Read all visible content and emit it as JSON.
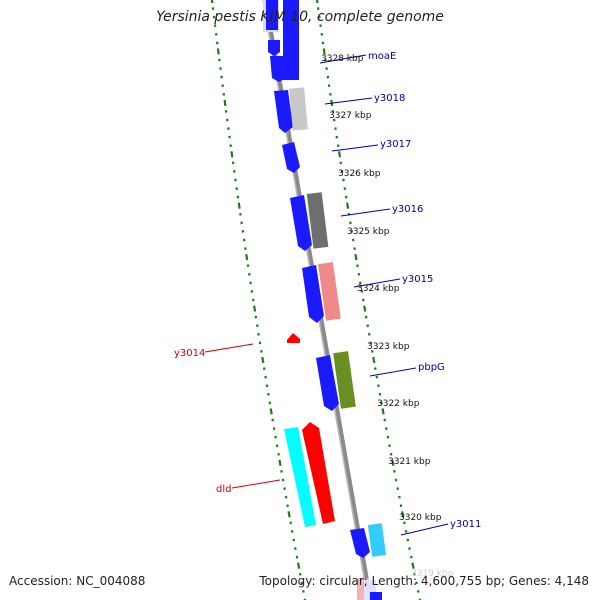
{
  "title": "Yersinia pestis KIM 10, complete genome",
  "footer": {
    "accession_label": "Accession: NC_004088",
    "summary": "Topology: circular; Length: 4,600,755 bp; Genes: 4,148"
  },
  "colors": {
    "backbone": "#8a8a8a",
    "tick_dots": "#1f7a1f",
    "label_blue": "#0000aa",
    "label_red": "#cc0000",
    "blue_feature": "#1a1aff",
    "red_feature": "#ff0000",
    "cyan_feature": "#00ffff",
    "light_cyan_feature": "#33ccff",
    "gray_feature": "#c8c8c8",
    "dark_gray_feature": "#6e6e6e",
    "pink_feature": "#f08a8a",
    "olive_feature": "#6b8e23",
    "pale_pink_feature": "#f4b4b4"
  },
  "kbp_labels": [
    "3328 kbp",
    "3327 kbp",
    "3326 kbp",
    "3325 kbp",
    "3324 kbp",
    "3323 kbp",
    "3322 kbp",
    "3321 kbp",
    "3320 kbp",
    "3319 kbp"
  ],
  "gene_labels": [
    {
      "name": "moaE",
      "color": "#0000aa"
    },
    {
      "name": "y3018",
      "color": "#0000aa"
    },
    {
      "name": "y3017",
      "color": "#0000aa"
    },
    {
      "name": "y3016",
      "color": "#0000aa"
    },
    {
      "name": "y3015",
      "color": "#0000aa"
    },
    {
      "name": "pbpG",
      "color": "#0000aa"
    },
    {
      "name": "y3011",
      "color": "#0000aa"
    },
    {
      "name": "y3014",
      "color": "#cc0000"
    },
    {
      "name": "dld",
      "color": "#cc0000"
    }
  ]
}
